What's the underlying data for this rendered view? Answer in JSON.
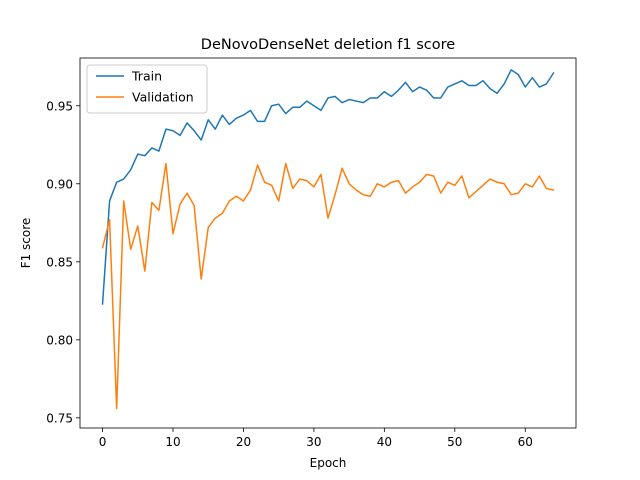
{
  "chart_data": {
    "type": "line",
    "title": "DeNovoDenseNet deletion f1 score",
    "xlabel": "Epoch",
    "ylabel": "F1 score",
    "xlim": [
      -3.2,
      67.2
    ],
    "ylim": [
      0.7435,
      0.9806
    ],
    "xticks": [
      0,
      10,
      20,
      30,
      40,
      50,
      60
    ],
    "yticks": [
      0.75,
      0.8,
      0.85,
      0.9,
      0.95
    ],
    "ytick_labels": [
      "0.75",
      "0.80",
      "0.85",
      "0.90",
      "0.95"
    ],
    "grid": false,
    "legend_position": "upper-left",
    "series": [
      {
        "name": "Train",
        "color": "#1f77b4",
        "x": [
          0,
          1,
          2,
          3,
          4,
          5,
          6,
          7,
          8,
          9,
          10,
          11,
          12,
          13,
          14,
          15,
          16,
          17,
          18,
          19,
          20,
          21,
          22,
          23,
          24,
          25,
          26,
          27,
          28,
          29,
          30,
          31,
          32,
          33,
          34,
          35,
          36,
          37,
          38,
          39,
          40,
          41,
          42,
          43,
          44,
          45,
          46,
          47,
          48,
          49,
          50,
          51,
          52,
          53,
          54,
          55,
          56,
          57,
          58,
          59,
          60,
          61,
          62,
          63,
          64
        ],
        "values": [
          0.823,
          0.889,
          0.901,
          0.903,
          0.909,
          0.919,
          0.918,
          0.923,
          0.921,
          0.935,
          0.934,
          0.931,
          0.939,
          0.934,
          0.928,
          0.941,
          0.935,
          0.944,
          0.938,
          0.942,
          0.944,
          0.947,
          0.94,
          0.94,
          0.95,
          0.951,
          0.945,
          0.949,
          0.949,
          0.953,
          0.95,
          0.947,
          0.955,
          0.956,
          0.952,
          0.954,
          0.953,
          0.952,
          0.955,
          0.955,
          0.959,
          0.956,
          0.96,
          0.965,
          0.959,
          0.962,
          0.96,
          0.955,
          0.955,
          0.962,
          0.964,
          0.966,
          0.963,
          0.963,
          0.966,
          0.961,
          0.958,
          0.964,
          0.973,
          0.97,
          0.962,
          0.968,
          0.962,
          0.964,
          0.971
        ]
      },
      {
        "name": "Validation",
        "color": "#ff7f0e",
        "x": [
          0,
          1,
          2,
          3,
          4,
          5,
          6,
          7,
          8,
          9,
          10,
          11,
          12,
          13,
          14,
          15,
          16,
          17,
          18,
          19,
          20,
          21,
          22,
          23,
          24,
          25,
          26,
          27,
          28,
          29,
          30,
          31,
          32,
          33,
          34,
          35,
          36,
          37,
          38,
          39,
          40,
          41,
          42,
          43,
          44,
          45,
          46,
          47,
          48,
          49,
          50,
          51,
          52,
          53,
          54,
          55,
          56,
          57,
          58,
          59,
          60,
          61,
          62,
          63,
          64
        ],
        "values": [
          0.859,
          0.877,
          0.756,
          0.889,
          0.858,
          0.873,
          0.844,
          0.888,
          0.883,
          0.913,
          0.868,
          0.887,
          0.894,
          0.886,
          0.839,
          0.872,
          0.878,
          0.881,
          0.889,
          0.892,
          0.889,
          0.896,
          0.912,
          0.901,
          0.899,
          0.889,
          0.913,
          0.897,
          0.903,
          0.902,
          0.898,
          0.906,
          0.878,
          0.893,
          0.91,
          0.9,
          0.896,
          0.893,
          0.892,
          0.9,
          0.898,
          0.901,
          0.902,
          0.894,
          0.898,
          0.901,
          0.906,
          0.905,
          0.894,
          0.901,
          0.899,
          0.905,
          0.891,
          0.895,
          0.899,
          0.903,
          0.901,
          0.9,
          0.893,
          0.894,
          0.9,
          0.898,
          0.905,
          0.897,
          0.896
        ]
      }
    ]
  }
}
